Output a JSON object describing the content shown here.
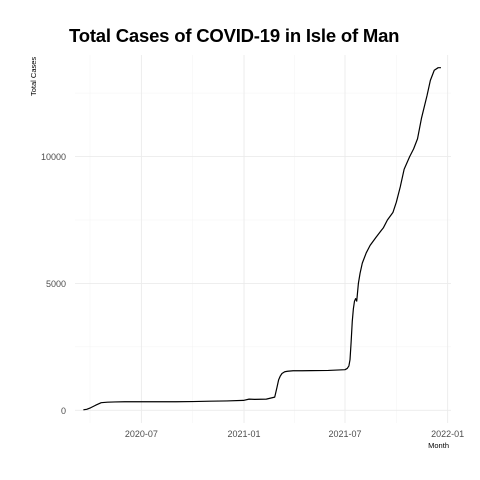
{
  "chart_data": {
    "type": "line",
    "title": "Total Cases of COVID-19 in Isle of Man",
    "xlabel": "Month",
    "ylabel": "Total Cases",
    "x_tick_labels": [
      "2020-07",
      "2021-01",
      "2021-07",
      "2022-01"
    ],
    "y_tick_labels": [
      "0",
      "5000",
      "10000"
    ],
    "y_ticks": [
      0,
      5000,
      10000
    ],
    "ylim": [
      -500,
      14000
    ],
    "xlim": [
      "2020-03-04",
      "2022-01-07"
    ],
    "grid": true,
    "legend": "none",
    "series": [
      {
        "line_color": "#000000",
        "x": [
          "2020-03-19",
          "2020-03-25",
          "2020-04-01",
          "2020-04-10",
          "2020-04-20",
          "2020-05-01",
          "2020-05-15",
          "2020-06-01",
          "2020-07-01",
          "2020-08-01",
          "2020-09-01",
          "2020-10-01",
          "2020-11-01",
          "2020-12-01",
          "2020-12-31",
          "2021-01-10",
          "2021-01-20",
          "2021-02-10",
          "2021-02-25",
          "2021-03-01",
          "2021-03-04",
          "2021-03-07",
          "2021-03-10",
          "2021-03-15",
          "2021-03-20",
          "2021-03-30",
          "2021-04-15",
          "2021-05-01",
          "2021-06-01",
          "2021-07-01",
          "2021-07-05",
          "2021-07-08",
          "2021-07-10",
          "2021-07-12",
          "2021-07-14",
          "2021-07-16",
          "2021-07-18",
          "2021-07-20",
          "2021-07-22",
          "2021-07-25",
          "2021-07-28",
          "2021-08-01",
          "2021-08-08",
          "2021-08-15",
          "2021-08-25",
          "2021-09-01",
          "2021-09-08",
          "2021-09-15",
          "2021-09-25",
          "2021-10-01",
          "2021-10-08",
          "2021-10-15",
          "2021-10-25",
          "2021-11-01",
          "2021-11-08",
          "2021-11-15",
          "2021-11-25",
          "2021-12-01",
          "2021-12-08",
          "2021-12-15",
          "2021-12-20"
        ],
        "y": [
          20,
          40,
          100,
          200,
          300,
          320,
          330,
          336,
          336,
          336,
          336,
          345,
          360,
          370,
          390,
          440,
          430,
          440,
          520,
          900,
          1200,
          1350,
          1450,
          1520,
          1540,
          1560,
          1560,
          1565,
          1570,
          1600,
          1650,
          1750,
          2000,
          2700,
          3500,
          4000,
          4300,
          4400,
          4300,
          5000,
          5400,
          5800,
          6200,
          6500,
          6800,
          7000,
          7200,
          7500,
          7800,
          8200,
          8800,
          9500,
          10000,
          10300,
          10700,
          11500,
          12400,
          13000,
          13400,
          13500,
          13500
        ]
      }
    ]
  }
}
